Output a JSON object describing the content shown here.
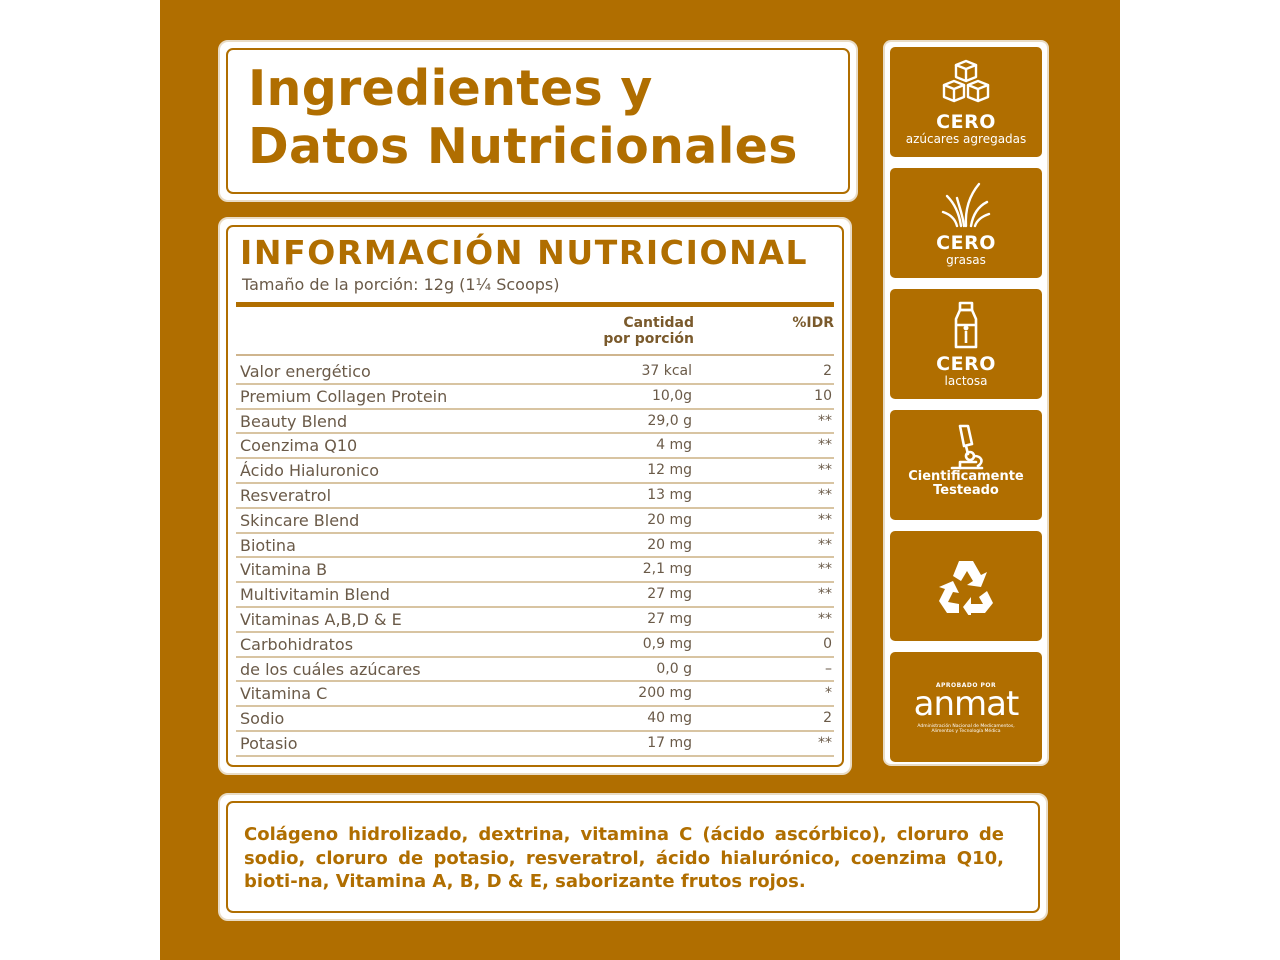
{
  "colors": {
    "brand": "#b06e00",
    "text": "#6a5a48",
    "white": "#ffffff"
  },
  "header": {
    "title_line1": "Ingredientes y",
    "title_line2": "Datos Nutricionales"
  },
  "nutrition": {
    "title": "INFORMACIÓN NUTRICIONAL",
    "serving": "Tamaño de la porción: 12g (1¼ Scoops)",
    "col_qty_line1": "Cantidad",
    "col_qty_line2": "por porción",
    "col_idr": "%IDR",
    "rows": [
      {
        "name": "Valor energético",
        "qty": "37 kcal",
        "idr": "2"
      },
      {
        "name": "Premium Collagen Protein",
        "qty": "10,0g",
        "idr": "10"
      },
      {
        "name": "Beauty Blend",
        "qty": "29,0 g",
        "idr": "**"
      },
      {
        "name": "Coenzima Q10",
        "qty": "4 mg",
        "idr": "**"
      },
      {
        "name": "Ácido Hialuronico",
        "qty": "12 mg",
        "idr": "**"
      },
      {
        "name": "Resveratrol",
        "qty": "13 mg",
        "idr": "**"
      },
      {
        "name": "Skincare Blend",
        "qty": "20 mg",
        "idr": "**"
      },
      {
        "name": "Biotina",
        "qty": "20 mg",
        "idr": "**"
      },
      {
        "name": "Vitamina B",
        "qty": "2,1 mg",
        "idr": "**"
      },
      {
        "name": "Multivitamin Blend",
        "qty": "27 mg",
        "idr": "**"
      },
      {
        "name": "Vitaminas A,B,D & E",
        "qty": "27 mg",
        "idr": "**"
      },
      {
        "name": "Carbohidratos",
        "qty": "0,9 mg",
        "idr": "0"
      },
      {
        "name": "de los cuáles azúcares",
        "qty": "0,0 g",
        "idr": "–"
      },
      {
        "name": "Vitamina C",
        "qty": "200 mg",
        "idr": "*"
      },
      {
        "name": "Sodio",
        "qty": "40 mg",
        "idr": "2"
      },
      {
        "name": "Potasio",
        "qty": "17 mg",
        "idr": "**"
      }
    ]
  },
  "ingredients": {
    "text": "Colágeno hidrolizado, dextrina, vitamina C (ácido ascórbico), cloruro de sodio, cloruro de potasio, resveratrol, ácido hialurónico, coenzima Q10, bioti-na, Vitamina A, B, D & E, saborizante frutos rojos."
  },
  "badges": [
    {
      "icon": "sugar-cubes-icon",
      "big": "CERO",
      "small": "azúcares agregadas"
    },
    {
      "icon": "grass-icon",
      "big": "CERO",
      "small": "grasas"
    },
    {
      "icon": "milk-bottle-icon",
      "big": "CERO",
      "small": "lactosa"
    },
    {
      "icon": "microscope-icon",
      "line1": "Cientificamente",
      "line2": "Testeado"
    },
    {
      "icon": "recycle-icon"
    },
    {
      "icon": "anmat-logo",
      "approved": "APROBADO POR",
      "word": "anmat",
      "sub1": "Administración Nacional de Medicamentos,",
      "sub2": "Alimentos y Tecnología Médica"
    }
  ]
}
